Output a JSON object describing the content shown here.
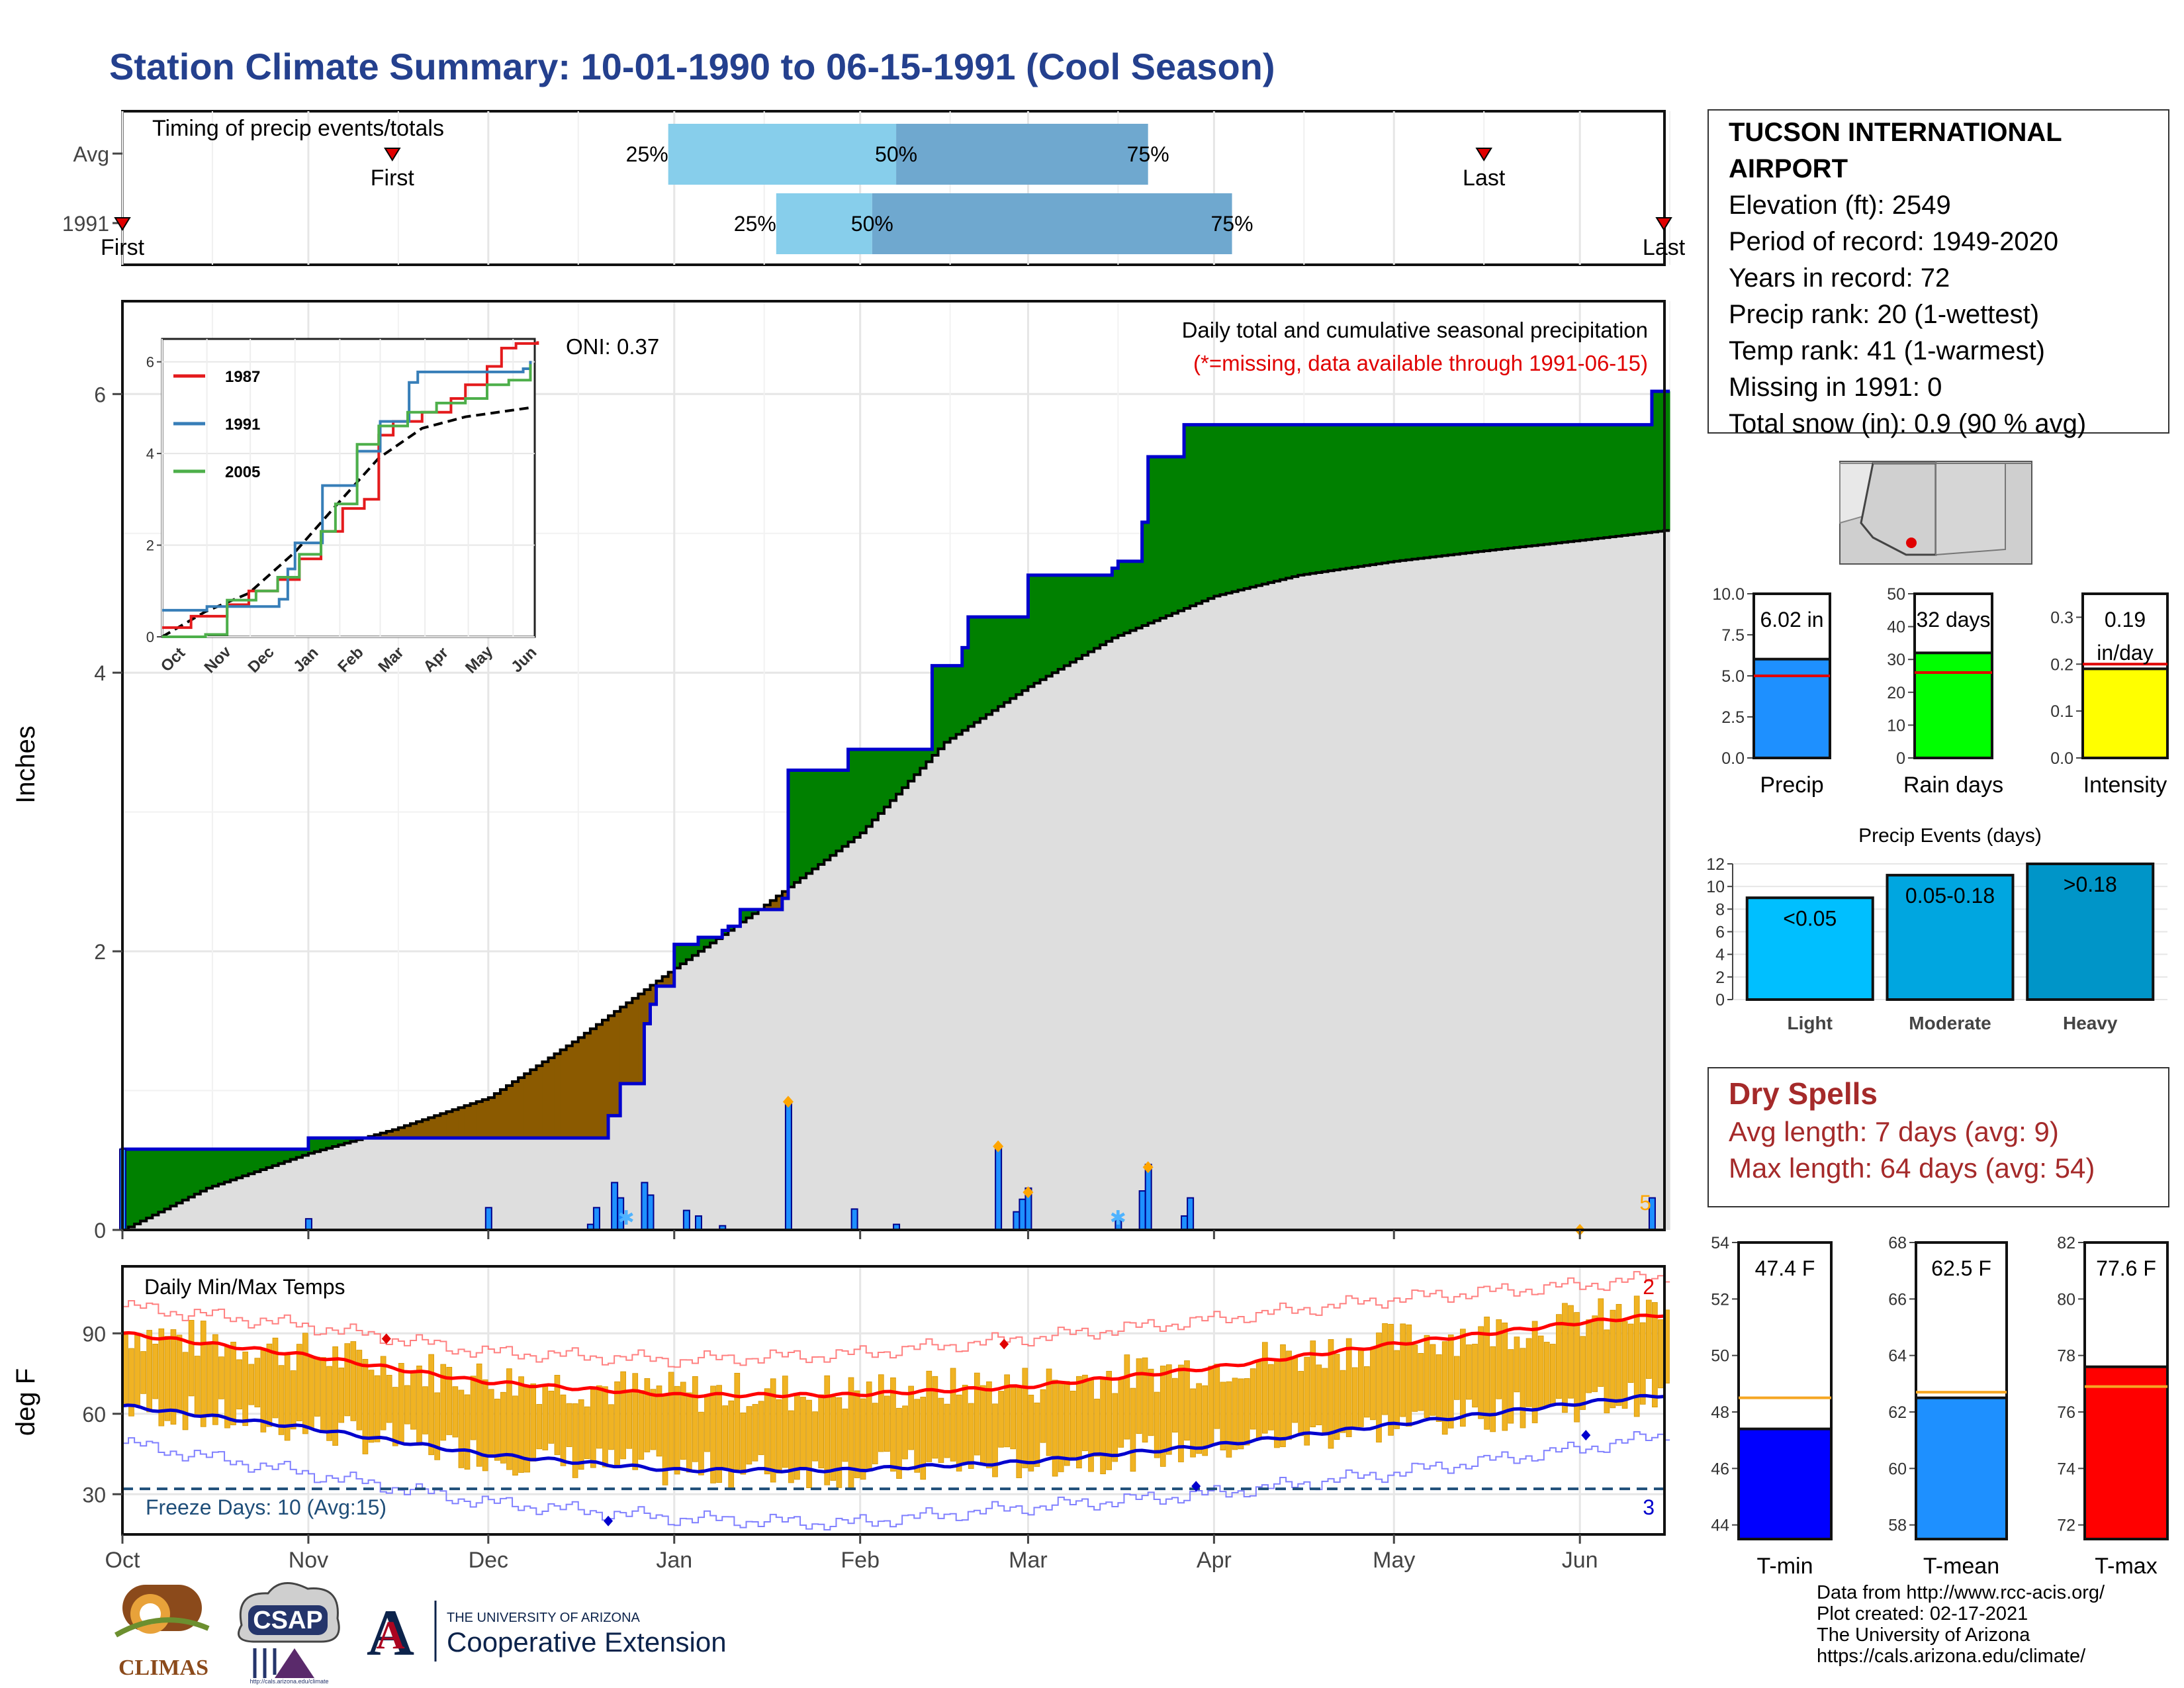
{
  "page": {
    "title": "Station Climate Summary: 10-01-1990 to 06-15-1991 (Cool Season)"
  },
  "colors": {
    "title": "#24408e",
    "above_avg_fill": "#008000",
    "below_avg_fill": "#8b5a00",
    "normal_fill": "#dedede",
    "cum_line": "#0000cd",
    "temp_bar": "#f0b323",
    "tmax_avg": "#ff0000",
    "tmin_avg": "#0000cd",
    "dry_spell": "#a52a2a",
    "timing_light": "#87ceeb",
    "timing_dark": "#6fa8cf",
    "precip_bar": "#1e90ff",
    "rain_days_bar": "#00ff00",
    "intensity_bar": "#ffff00",
    "events_light": "#00bfff",
    "events_moderate": "#00a6e0",
    "events_heavy": "#0095c8",
    "tmin_bar": "#0000ff",
    "tmean_bar": "#1e90ff",
    "tmax_bar": "#ff0000"
  },
  "station": {
    "name": "TUCSON INTERNATIONAL AIRPORT",
    "elevation": "Elevation (ft): 2549",
    "period": "Period of record: 1949-2020",
    "years": "Years in record: 72",
    "precip_rank": "Precip rank: 20 (1-wettest)",
    "temp_rank": "Temp rank: 41 (1-warmest)",
    "missing": "Missing in 1991: 0",
    "snow": "Total snow (in): 0.9 (90 % avg)"
  },
  "dry_spells": {
    "title": "Dry Spells",
    "avg": "Avg length: 7 days (avg: 9)",
    "max": "Max length: 64 days (avg: 54)"
  },
  "credits": {
    "line1": "Data from http://www.rcc-acis.org/",
    "line2": "Plot created: 02-17-2021",
    "line3": "The University of Arizona",
    "line4": "https://cals.arizona.edu/climate/"
  },
  "logos": {
    "climas": "CLIMAS",
    "csap": "CSAP",
    "csap_url": "http://cals.arizona.edu/climate",
    "ua_small": "THE UNIVERSITY OF ARIZONA",
    "ua_big": "Cooperative Extension",
    "ua_letter": "A"
  },
  "chart_data": [
    {
      "id": "timing",
      "type": "bar",
      "title": "Timing of precip events/totals",
      "rows": [
        {
          "label": "Avg",
          "first": "2000-11-15",
          "last": "2001-05-16",
          "p25": "2000-12-31",
          "p50": "2001-02-07",
          "p75": "2001-03-21"
        },
        {
          "label": "1991",
          "first": "2000-10-01",
          "last": "2001-06-15",
          "p25": "2001-01-18",
          "p50": "2001-02-03",
          "p75": "2001-04-04"
        }
      ],
      "marker_labels": {
        "first": "First",
        "last": "Last",
        "p25": "25%",
        "p50": "50%",
        "p75": "75%"
      }
    },
    {
      "id": "precip",
      "type": "area",
      "title": "Daily total and cumulative seasonal precipitation",
      "subtitle": "(*=missing, data available through 1991-06-15)",
      "oni": "ONI: 0.37",
      "ylabel": "Inches",
      "ylim": [
        0,
        6.6
      ],
      "yticks": [
        0,
        2,
        4,
        6
      ],
      "x_months": [
        "Oct",
        "Nov",
        "Dec",
        "Jan",
        "Feb",
        "Mar",
        "Apr",
        "May",
        "Jun"
      ],
      "x_month_starts": [
        "1990-10-01",
        "1990-11-01",
        "1990-12-01",
        "1991-01-01",
        "1991-02-01",
        "1991-03-01",
        "1991-04-01",
        "1991-05-01",
        "1991-06-01"
      ],
      "start_date": "1990-10-01",
      "end_date": "1991-06-15",
      "cumulative_observed_steps": [
        {
          "date": "1990-10-01",
          "value": 0.58
        },
        {
          "date": "1990-11-01",
          "value": 0.66
        },
        {
          "date": "1990-12-21",
          "value": 0.82
        },
        {
          "date": "1990-12-23",
          "value": 1.05
        },
        {
          "date": "1990-12-27",
          "value": 1.48
        },
        {
          "date": "1990-12-28",
          "value": 1.62
        },
        {
          "date": "1990-12-29",
          "value": 1.75
        },
        {
          "date": "1991-01-01",
          "value": 2.05
        },
        {
          "date": "1991-01-05",
          "value": 2.1
        },
        {
          "date": "1991-01-09",
          "value": 2.15
        },
        {
          "date": "1991-01-10",
          "value": 2.18
        },
        {
          "date": "1991-01-12",
          "value": 2.3
        },
        {
          "date": "1991-01-19",
          "value": 2.38
        },
        {
          "date": "1991-01-20",
          "value": 3.3
        },
        {
          "date": "1991-01-30",
          "value": 3.45
        },
        {
          "date": "1991-02-13",
          "value": 4.05
        },
        {
          "date": "1991-02-18",
          "value": 4.18
        },
        {
          "date": "1991-02-19",
          "value": 4.4
        },
        {
          "date": "1991-03-01",
          "value": 4.7
        },
        {
          "date": "1991-03-15",
          "value": 4.75
        },
        {
          "date": "1991-03-16",
          "value": 4.8
        },
        {
          "date": "1991-03-20",
          "value": 5.08
        },
        {
          "date": "1991-03-21",
          "value": 5.55
        },
        {
          "date": "1991-03-27",
          "value": 5.78
        },
        {
          "date": "1991-06-13",
          "value": 6.02
        }
      ],
      "normal_cumulative": [
        {
          "date": "1990-10-01",
          "value": 0.0
        },
        {
          "date": "1990-10-15",
          "value": 0.3
        },
        {
          "date": "1990-11-01",
          "value": 0.55
        },
        {
          "date": "1990-11-15",
          "value": 0.72
        },
        {
          "date": "1990-12-01",
          "value": 0.95
        },
        {
          "date": "1990-12-15",
          "value": 1.35
        },
        {
          "date": "1990-12-31",
          "value": 1.85
        },
        {
          "date": "1991-01-15",
          "value": 2.3
        },
        {
          "date": "1991-02-01",
          "value": 2.85
        },
        {
          "date": "1991-02-15",
          "value": 3.5
        },
        {
          "date": "1991-03-01",
          "value": 3.9
        },
        {
          "date": "1991-03-15",
          "value": 4.25
        },
        {
          "date": "1991-04-01",
          "value": 4.55
        },
        {
          "date": "1991-04-15",
          "value": 4.7
        },
        {
          "date": "1991-05-01",
          "value": 4.8
        },
        {
          "date": "1991-05-15",
          "value": 4.87
        },
        {
          "date": "1991-06-01",
          "value": 4.95
        },
        {
          "date": "1991-06-15",
          "value": 5.02
        }
      ],
      "daily_precip": [
        {
          "date": "1990-10-01",
          "value": 0.58
        },
        {
          "date": "1990-11-01",
          "value": 0.08
        },
        {
          "date": "1990-12-01",
          "value": 0.16
        },
        {
          "date": "1990-12-18",
          "value": 0.04
        },
        {
          "date": "1990-12-19",
          "value": 0.16
        },
        {
          "date": "1990-12-22",
          "value": 0.34
        },
        {
          "date": "1990-12-23",
          "value": 0.23
        },
        {
          "date": "1990-12-27",
          "value": 0.34
        },
        {
          "date": "1990-12-28",
          "value": 0.25
        },
        {
          "date": "1991-01-03",
          "value": 0.14
        },
        {
          "date": "1991-01-05",
          "value": 0.1
        },
        {
          "date": "1991-01-09",
          "value": 0.03
        },
        {
          "date": "1991-01-20",
          "value": 0.92
        },
        {
          "date": "1991-01-31",
          "value": 0.15
        },
        {
          "date": "1991-02-07",
          "value": 0.04
        },
        {
          "date": "1991-02-24",
          "value": 0.6
        },
        {
          "date": "1991-02-27",
          "value": 0.13
        },
        {
          "date": "1991-02-28",
          "value": 0.22
        },
        {
          "date": "1991-03-01",
          "value": 0.3
        },
        {
          "date": "1991-03-16",
          "value": 0.07
        },
        {
          "date": "1991-03-20",
          "value": 0.28
        },
        {
          "date": "1991-03-21",
          "value": 0.47
        },
        {
          "date": "1991-03-27",
          "value": 0.1
        },
        {
          "date": "1991-03-28",
          "value": 0.23
        },
        {
          "date": "1991-06-13",
          "value": 0.23
        }
      ],
      "record_markers": [
        {
          "date": "1991-01-20",
          "value": 0.92
        },
        {
          "date": "1991-02-24",
          "value": 0.6
        },
        {
          "date": "1991-03-01",
          "value": 0.27
        },
        {
          "date": "1991-03-21",
          "value": 0.45
        },
        {
          "date": "1991-06-01",
          "value": 0.0
        }
      ],
      "snow_markers": [
        "1990-12-24",
        "1991-03-16"
      ],
      "record_count": "5"
    },
    {
      "id": "inset",
      "type": "line",
      "ylim": [
        0,
        6.5
      ],
      "yticks": [
        0,
        2,
        4,
        6
      ],
      "x_months": [
        "Oct",
        "Nov",
        "Dec",
        "Jan",
        "Feb",
        "Mar",
        "Apr",
        "May",
        "Jun"
      ],
      "series": [
        {
          "name": "1987",
          "color": "#e41a1c",
          "points": [
            [
              0,
              0.2
            ],
            [
              20,
              0.45
            ],
            [
              45,
              0.7
            ],
            [
              60,
              1.0
            ],
            [
              80,
              1.25
            ],
            [
              95,
              1.7
            ],
            [
              110,
              2.3
            ],
            [
              125,
              2.8
            ],
            [
              140,
              3.0
            ],
            [
              150,
              4.4
            ],
            [
              160,
              4.7
            ],
            [
              180,
              4.9
            ],
            [
              200,
              5.2
            ],
            [
              210,
              5.5
            ],
            [
              225,
              5.9
            ],
            [
              235,
              6.3
            ],
            [
              245,
              6.4
            ],
            [
              260,
              6.45
            ]
          ]
        },
        {
          "name": "1991",
          "color": "#377eb8",
          "points": [
            [
              0,
              0.58
            ],
            [
              31,
              0.66
            ],
            [
              81,
              0.82
            ],
            [
              87,
              1.48
            ],
            [
              92,
              2.05
            ],
            [
              111,
              3.3
            ],
            [
              135,
              4.05
            ],
            [
              151,
              4.7
            ],
            [
              171,
              5.55
            ],
            [
              177,
              5.78
            ],
            [
              250,
              5.85
            ],
            [
              255,
              6.02
            ]
          ]
        },
        {
          "name": "2005",
          "color": "#4daf4a",
          "points": [
            [
              0,
              0.0
            ],
            [
              30,
              0.05
            ],
            [
              45,
              0.8
            ],
            [
              65,
              1.0
            ],
            [
              80,
              1.3
            ],
            [
              95,
              1.8
            ],
            [
              110,
              2.3
            ],
            [
              120,
              2.9
            ],
            [
              135,
              4.2
            ],
            [
              150,
              4.6
            ],
            [
              170,
              4.9
            ],
            [
              190,
              5.1
            ],
            [
              210,
              5.2
            ],
            [
              225,
              5.5
            ],
            [
              240,
              5.6
            ],
            [
              255,
              5.95
            ]
          ]
        }
      ],
      "normal": [
        [
          0,
          0.0
        ],
        [
          30,
          0.55
        ],
        [
          60,
          0.95
        ],
        [
          92,
          1.85
        ],
        [
          120,
          2.85
        ],
        [
          150,
          3.9
        ],
        [
          180,
          4.55
        ],
        [
          210,
          4.8
        ],
        [
          255,
          5.0
        ]
      ]
    },
    {
      "id": "temps",
      "type": "bar",
      "title": "Daily Min/Max Temps",
      "ylabel": "deg F",
      "ylim": [
        15,
        115
      ],
      "yticks": [
        30,
        60,
        90
      ],
      "freeze_label": "Freeze Days: 10 (Avg:15)",
      "freeze_threshold": 32,
      "record_high_count": "2",
      "record_low_count": "3",
      "avg_max_curve": [
        [
          0,
          90
        ],
        [
          30,
          82
        ],
        [
          60,
          72
        ],
        [
          92,
          67
        ],
        [
          120,
          67
        ],
        [
          150,
          70
        ],
        [
          181,
          77
        ],
        [
          212,
          86
        ],
        [
          243,
          94
        ],
        [
          257,
          97
        ]
      ],
      "avg_min_curve": [
        [
          0,
          63
        ],
        [
          30,
          55
        ],
        [
          60,
          45
        ],
        [
          92,
          39
        ],
        [
          120,
          39
        ],
        [
          150,
          42
        ],
        [
          181,
          48
        ],
        [
          212,
          56
        ],
        [
          243,
          64
        ],
        [
          257,
          67
        ]
      ],
      "record_high_curve": [
        [
          0,
          100
        ],
        [
          30,
          93
        ],
        [
          60,
          83
        ],
        [
          92,
          80
        ],
        [
          120,
          82
        ],
        [
          150,
          88
        ],
        [
          181,
          95
        ],
        [
          212,
          103
        ],
        [
          243,
          108
        ],
        [
          257,
          111
        ]
      ],
      "record_low_curve": [
        [
          0,
          49
        ],
        [
          30,
          38
        ],
        [
          60,
          27
        ],
        [
          92,
          21
        ],
        [
          120,
          19
        ],
        [
          150,
          25
        ],
        [
          181,
          30
        ],
        [
          212,
          38
        ],
        [
          243,
          47
        ],
        [
          257,
          52
        ]
      ],
      "record_markers": [
        {
          "day": 44,
          "value": 88,
          "kind": "high"
        },
        {
          "day": 147,
          "value": 86,
          "kind": "high"
        },
        {
          "day": 81,
          "value": 20,
          "kind": "low"
        },
        {
          "day": 179,
          "value": 33,
          "kind": "low"
        },
        {
          "day": 244,
          "value": 52,
          "kind": "low"
        }
      ]
    },
    {
      "id": "precip_summary",
      "type": "bar",
      "panels": [
        {
          "category": "Precip",
          "value": 6.02,
          "avg": 5.0,
          "label": "6.02 in",
          "ylim": [
            0,
            10
          ],
          "yticks": [
            "0.0",
            "2.5",
            "5.0",
            "7.5",
            "10.0"
          ]
        },
        {
          "category": "Rain days",
          "value": 32,
          "avg": 26,
          "label": "32 days",
          "ylim": [
            0,
            50
          ],
          "yticks": [
            "0",
            "10",
            "20",
            "30",
            "40",
            "50"
          ]
        },
        {
          "category": "Intensity",
          "value": 0.19,
          "avg": 0.2,
          "label": "0.19",
          "label2": "in/day",
          "ylim": [
            0,
            0.35
          ],
          "yticks": [
            "0.0",
            "0.1",
            "0.2",
            "0.3"
          ]
        }
      ]
    },
    {
      "id": "precip_events",
      "type": "bar",
      "title": "Precip Events (days)",
      "categories": [
        "Light",
        "Moderate",
        "Heavy"
      ],
      "bins": [
        "<0.05",
        "0.05-0.18",
        ">0.18"
      ],
      "values": [
        9,
        11,
        12
      ],
      "ylim": [
        0,
        12
      ],
      "yticks": [
        "0",
        "2",
        "4",
        "6",
        "8",
        "10",
        "12"
      ]
    },
    {
      "id": "temp_summary",
      "type": "bar",
      "panels": [
        {
          "category": "T-min",
          "value": 47.4,
          "avg": 48.5,
          "label": "47.4 F",
          "ylim": [
            43.5,
            54
          ],
          "yticks": [
            "44",
            "46",
            "48",
            "50",
            "52",
            "54"
          ]
        },
        {
          "category": "T-mean",
          "value": 62.5,
          "avg": 62.7,
          "label": "62.5 F",
          "ylim": [
            57.5,
            68
          ],
          "yticks": [
            "58",
            "60",
            "62",
            "64",
            "66",
            "68"
          ]
        },
        {
          "category": "T-max",
          "value": 77.6,
          "avg": 76.9,
          "label": "77.6 F",
          "ylim": [
            71.5,
            82
          ],
          "yticks": [
            "72",
            "74",
            "76",
            "78",
            "80",
            "82"
          ]
        }
      ]
    }
  ]
}
